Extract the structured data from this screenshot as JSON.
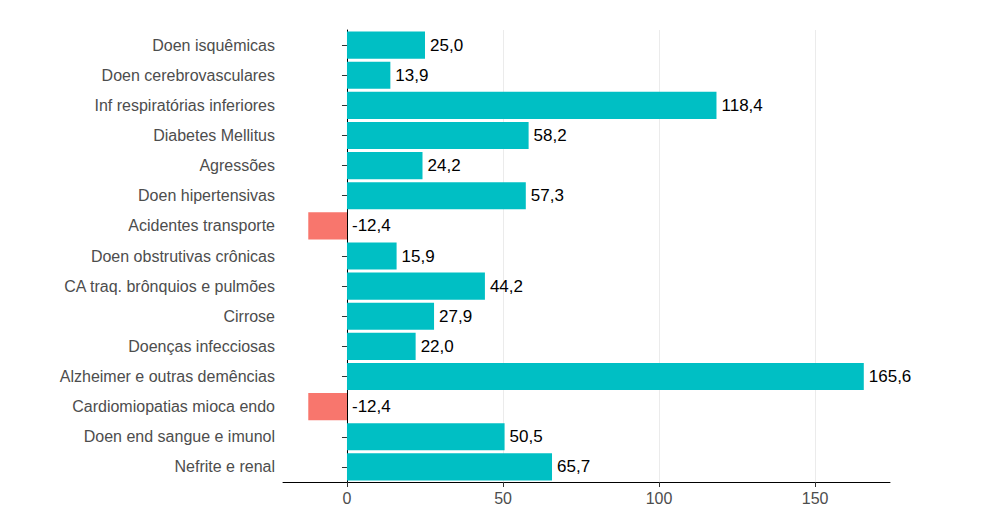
{
  "chart_data": {
    "type": "bar",
    "orientation": "horizontal",
    "categories": [
      "Doen isquêmicas",
      "Doen cerebrovasculares",
      "Inf respiratórias inferiores",
      "Diabetes Mellitus",
      "Agressões",
      "Doen hipertensivas",
      "Acidentes transporte",
      "Doen obstrutivas crônicas",
      "CA traq. brônquios e pulmões",
      "Cirrose",
      "Doenças infecciosas",
      "Alzheimer e outras demências",
      "Cardiomiopatias mioca endo",
      "Doen end sangue e imunol",
      "Nefrite e renal"
    ],
    "values": [
      25.0,
      13.9,
      118.4,
      58.2,
      24.2,
      57.3,
      -12.4,
      15.9,
      44.2,
      27.9,
      22.0,
      165.6,
      -12.4,
      50.5,
      65.7
    ],
    "value_labels": [
      "25,0",
      "13,9",
      "118,4",
      "58,2",
      "24,2",
      "57,3",
      "-12,4",
      "15,9",
      "44,2",
      "27,9",
      "22,0",
      "165,6",
      "-12,4",
      "50,5",
      "65,7"
    ],
    "colors": [
      "#00BFC4",
      "#00BFC4",
      "#00BFC4",
      "#00BFC4",
      "#00BFC4",
      "#00BFC4",
      "#F8766D",
      "#00BFC4",
      "#00BFC4",
      "#00BFC4",
      "#00BFC4",
      "#00BFC4",
      "#F8766D",
      "#00BFC4",
      "#00BFC4"
    ],
    "xlim": [
      -20.5,
      174
    ],
    "xticks": [
      0,
      50,
      100,
      150
    ],
    "grid": true,
    "data_labels": true
  }
}
